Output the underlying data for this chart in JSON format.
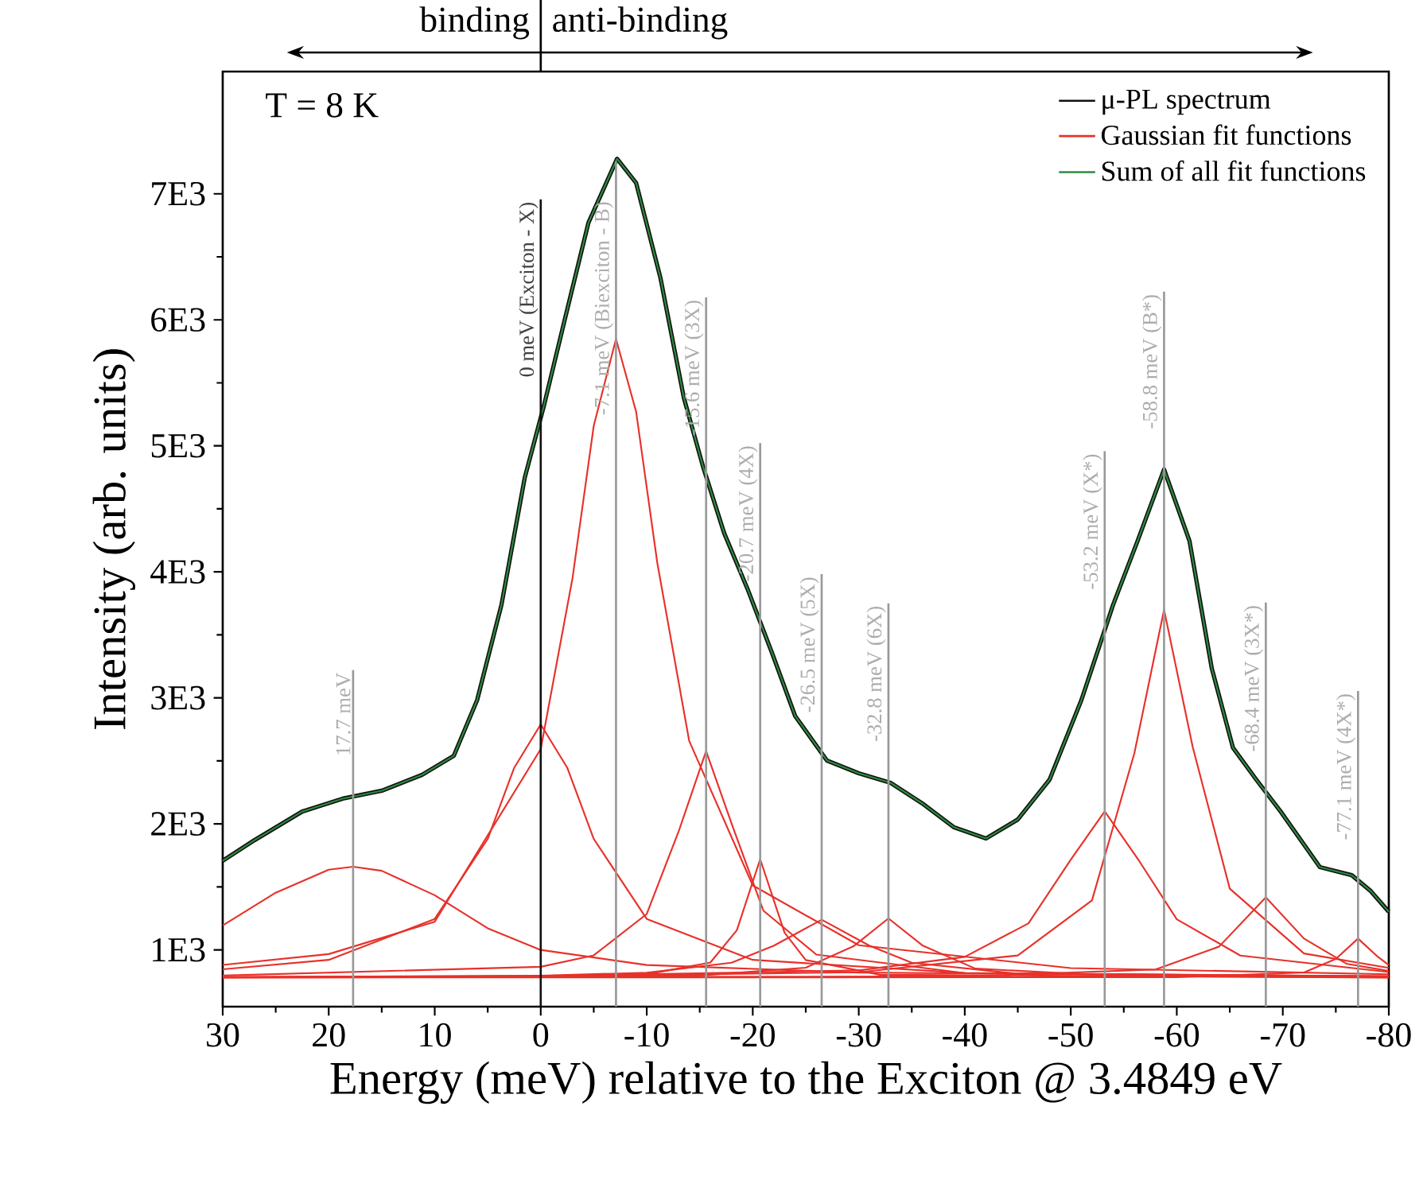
{
  "chart_data": {
    "type": "line",
    "xlabel": "Energy (meV) relative to the Exciton @ 3.4849 eV",
    "ylabel": "Intensity (arb. units)",
    "annotations": [
      "binding",
      "anti-binding",
      "T = 8 K"
    ],
    "xlim": [
      30,
      -80
    ],
    "xticks": [
      30,
      20,
      10,
      0,
      -10,
      -20,
      -30,
      -40,
      -50,
      -60,
      -70,
      -80
    ],
    "ylim": [
      550,
      7970
    ],
    "yticks": [
      {
        "value": 1000,
        "label": "1E3"
      },
      {
        "value": 2000,
        "label": "2E3"
      },
      {
        "value": 3000,
        "label": "3E3"
      },
      {
        "value": 4000,
        "label": "4E3"
      },
      {
        "value": 5000,
        "label": "5E3"
      },
      {
        "value": 6000,
        "label": "6E3"
      },
      {
        "value": 7000,
        "label": "7E3"
      }
    ],
    "legend": "top right",
    "marker": "none",
    "line_style": "solid",
    "series": [
      {
        "name": "μ-PL spectrum",
        "color": "#111111",
        "x": [
          30,
          27,
          22.5,
          18.7,
          15,
          11.2,
          8.2,
          6,
          3.7,
          1.5,
          -0.3,
          -2.3,
          -4.5,
          -7.2,
          -9,
          -11.3,
          -13.5,
          -15.3,
          -17.3,
          -19.5,
          -21.8,
          -24,
          -27,
          -30,
          -33,
          -36,
          -39,
          -42,
          -45,
          -48,
          -51,
          -54,
          -56.3,
          -58.8,
          -61.2,
          -63.3,
          -65.3,
          -67.5,
          -69.8,
          -73.5,
          -76.5,
          -78.3,
          -80
        ],
        "values": [
          1707,
          1871,
          2098,
          2200,
          2263,
          2389,
          2540,
          2982,
          3740,
          4750,
          5318,
          6013,
          6770,
          7278,
          7086,
          6330,
          5381,
          4838,
          4308,
          3866,
          3361,
          2856,
          2503,
          2402,
          2326,
          2162,
          1972,
          1884,
          2035,
          2351,
          2982,
          3740,
          4245,
          4813,
          4245,
          3235,
          2604,
          2351,
          2098,
          1657,
          1593,
          1467,
          1303
        ]
      },
      {
        "name": "Gaussian fit functions",
        "color": "#e8312a",
        "x": [
          30,
          25,
          20,
          17.7,
          15,
          10,
          5,
          0,
          -10,
          -30,
          -80
        ],
        "values": [
          1194,
          1454,
          1637,
          1660,
          1628,
          1434,
          1172,
          1000,
          880,
          820,
          790
        ]
      },
      {
        "color": "#e8312a",
        "x": [
          30,
          20,
          10,
          5,
          2.5,
          0,
          -2.5,
          -5,
          -10,
          -20,
          -40,
          -80
        ],
        "values": [
          846,
          921,
          1246,
          1881,
          2446,
          2790,
          2446,
          1881,
          1246,
          921,
          817,
          790
        ]
      },
      {
        "color": "#e8312a",
        "x": [
          30,
          20,
          10,
          0,
          -3,
          -5,
          -7.1,
          -9,
          -11,
          -14,
          -20,
          -30,
          -50,
          -80
        ],
        "values": [
          881,
          967,
          1224,
          2594,
          3951,
          5159,
          5848,
          5270,
          4069,
          2660,
          1512,
          1037,
          856,
          807
        ]
      },
      {
        "color": "#e8312a",
        "x": [
          30,
          0,
          -5,
          -10,
          -13,
          -15.6,
          -18,
          -21,
          -26,
          -40,
          -80
        ],
        "values": [
          797,
          866,
          957,
          1285,
          1938,
          2578,
          2003,
          1312,
          963,
          816,
          790
        ]
      },
      {
        "color": "#e8312a",
        "x": [
          30,
          10,
          -10,
          -16,
          -18.5,
          -20.7,
          -23,
          -25,
          -32,
          -80
        ],
        "values": [
          783,
          783,
          806,
          900,
          1156,
          1720,
          1137,
          920,
          803,
          780
        ]
      },
      {
        "color": "#e8312a",
        "x": [
          30,
          0,
          -10,
          -18,
          -22,
          -26.5,
          -31,
          -35,
          -45,
          -80
        ],
        "values": [
          783,
          796,
          819,
          898,
          1034,
          1240,
          1034,
          898,
          811,
          784
        ]
      },
      {
        "color": "#e8312a",
        "x": [
          30,
          -15,
          -25,
          -29.5,
          -32.8,
          -36,
          -41,
          -55,
          -80
        ],
        "values": [
          782,
          797,
          859,
          1029,
          1250,
          1036,
          852,
          791,
          782
        ]
      },
      {
        "color": "#e8312a",
        "x": [
          30,
          0,
          -30,
          -40,
          -46,
          -50,
          -53.2,
          -56.5,
          -60,
          -66,
          -80
        ],
        "values": [
          785,
          792,
          838,
          945,
          1210,
          1716,
          2100,
          1700,
          1243,
          955,
          824
        ]
      },
      {
        "color": "#e8312a",
        "x": [
          30,
          0,
          -30,
          -45,
          -52,
          -56,
          -58.8,
          -61.5,
          -65,
          -72,
          -80
        ],
        "values": [
          785,
          790,
          823,
          956,
          1393,
          2561,
          3700,
          2611,
          1486,
          972,
          857
        ]
      },
      {
        "color": "#e8312a",
        "x": [
          30,
          -40,
          -58,
          -64,
          -68.4,
          -72,
          -76,
          -80
        ],
        "values": [
          782,
          790,
          845,
          1027,
          1417,
          1090,
          891,
          833
        ]
      },
      {
        "color": "#e8312a",
        "x": [
          30,
          -60,
          -72,
          -75,
          -77.1,
          -79,
          -80
        ],
        "values": [
          781,
          784,
          821,
          928,
          1090,
          943,
          880
        ]
      },
      {
        "name": "Sum of all fit functions",
        "color": "#2e8b3e",
        "x": [
          30,
          27,
          22.5,
          18.7,
          15,
          11.2,
          8.2,
          6,
          3.7,
          1.5,
          -0.3,
          -2.3,
          -4.5,
          -7.2,
          -9,
          -11.3,
          -13.5,
          -15.3,
          -17.3,
          -19.5,
          -21.8,
          -24,
          -27,
          -30,
          -33,
          -36,
          -39,
          -42,
          -45,
          -48,
          -51,
          -54,
          -56.3,
          -58.8,
          -61.2,
          -63.3,
          -65.3,
          -67.5,
          -69.8,
          -73.5,
          -76.5,
          -78.3,
          -80
        ],
        "values": [
          1707,
          1871,
          2098,
          2200,
          2263,
          2389,
          2540,
          2982,
          3740,
          4750,
          5318,
          6013,
          6770,
          7278,
          7086,
          6330,
          5381,
          4838,
          4308,
          3866,
          3361,
          2856,
          2503,
          2402,
          2326,
          2162,
          1972,
          1884,
          2035,
          2351,
          2982,
          3740,
          4245,
          4813,
          4245,
          3235,
          2604,
          2351,
          2098,
          1657,
          1593,
          1467,
          1303
        ]
      }
    ],
    "ref_lines": [
      {
        "axis": "x",
        "value": 17.7,
        "label": "17.7 meV",
        "color": "#999999"
      },
      {
        "axis": "x",
        "value": 0,
        "label": "0 meV (Exciton - X)",
        "color": "#111111"
      },
      {
        "axis": "x",
        "value": -7.1,
        "label": "-7.1 meV (Biexciton - B)",
        "color": "#999999"
      },
      {
        "axis": "x",
        "value": -15.6,
        "label": "-15.6 meV (3X)",
        "color": "#999999"
      },
      {
        "axis": "x",
        "value": -20.7,
        "label": "-20.7 meV (4X)",
        "color": "#999999"
      },
      {
        "axis": "x",
        "value": -26.5,
        "label": "-26.5 meV (5X)",
        "color": "#999999"
      },
      {
        "axis": "x",
        "value": -32.8,
        "label": "-32.8 meV (6X)",
        "color": "#999999"
      },
      {
        "axis": "x",
        "value": -53.2,
        "label": "-53.2 meV (X*)",
        "color": "#999999"
      },
      {
        "axis": "x",
        "value": -58.8,
        "label": "-58.8 meV (B*)",
        "color": "#999999"
      },
      {
        "axis": "x",
        "value": -68.4,
        "label": "-68.4 meV (3X*)",
        "color": "#999999"
      },
      {
        "axis": "x",
        "value": -77.1,
        "label": "-77.1 meV (4X*)",
        "color": "#999999"
      }
    ]
  }
}
